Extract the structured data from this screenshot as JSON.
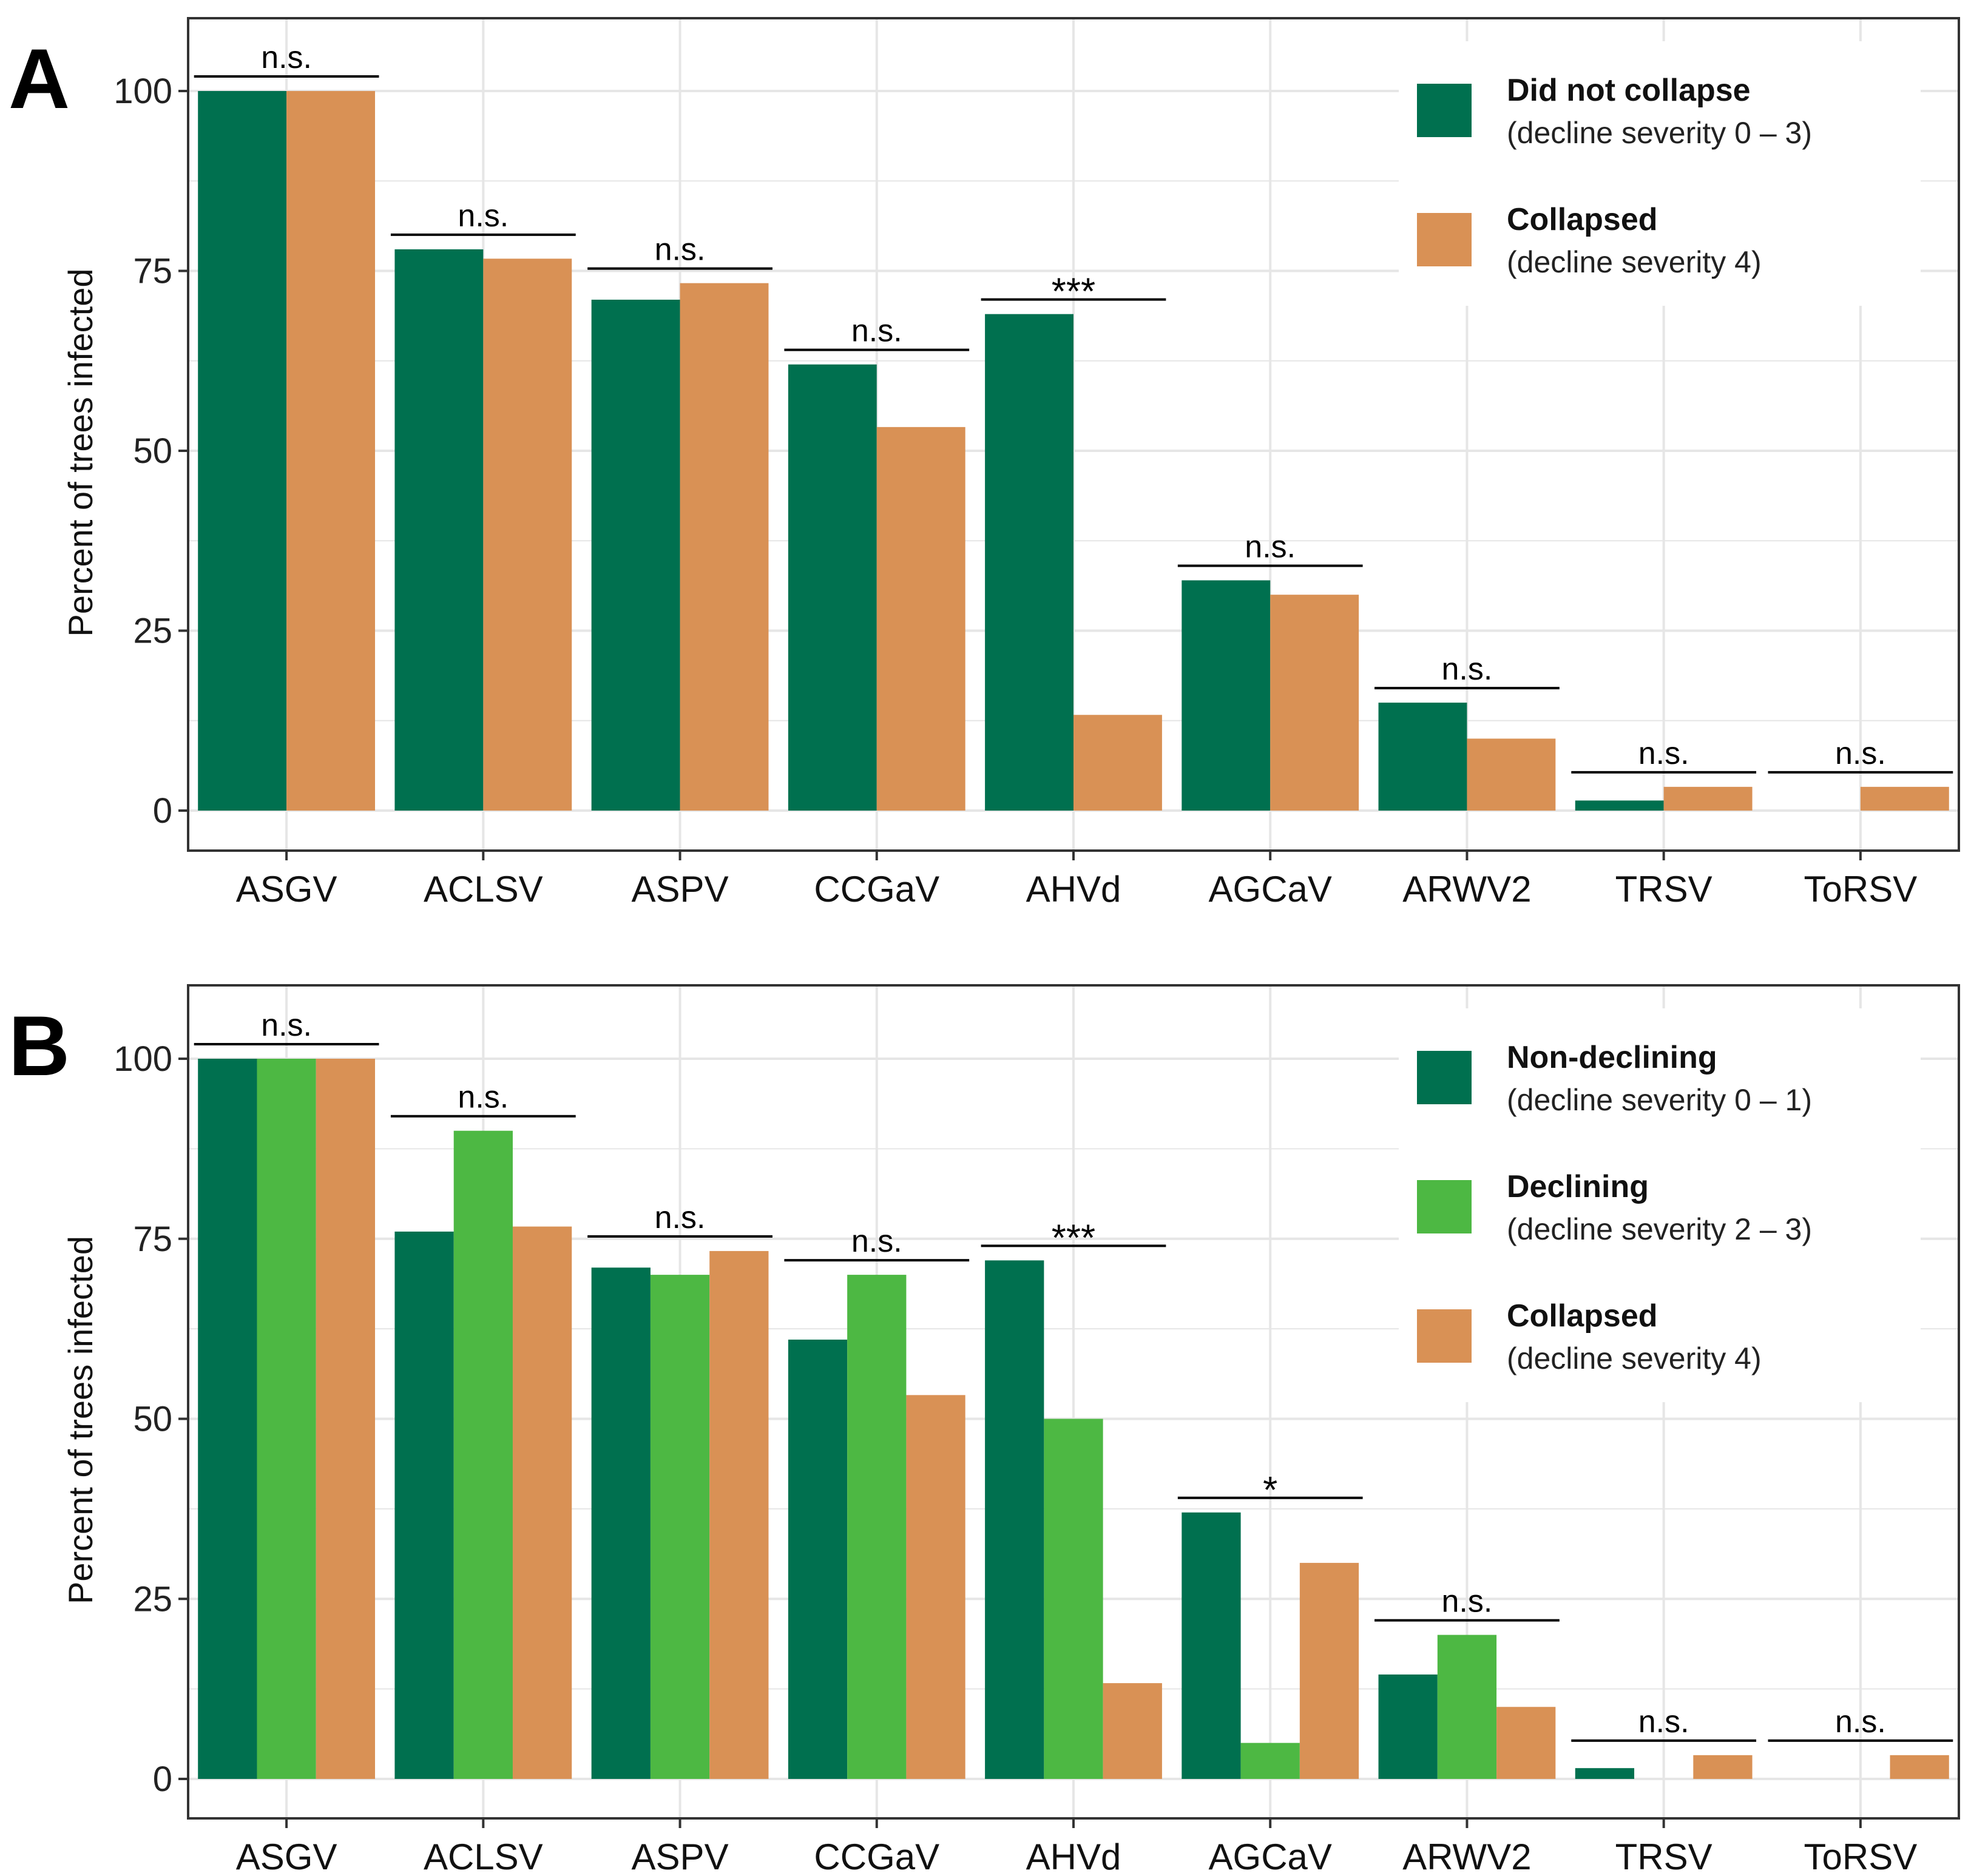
{
  "colors": {
    "did_not_collapse": "#00704F",
    "non_declining": "#00704F",
    "declining": "#4DB843",
    "collapsed": "#D99155",
    "grid": "#E6E6E6",
    "panel_border": "#333333",
    "text": "#000000"
  },
  "chart_data": [
    {
      "panel_label": "A",
      "type": "bar",
      "ylabel": "Percent of trees infected",
      "xlabel": "",
      "ylim": [
        0,
        105
      ],
      "yticks": [
        0,
        25,
        50,
        75,
        100
      ],
      "grid": true,
      "legend_position": "top-right",
      "categories": [
        "ASGV",
        "ACLSV",
        "ASPV",
        "CCGaV",
        "AHVd",
        "AGCaV",
        "ARWV2",
        "TRSV",
        "ToRSV"
      ],
      "significance": [
        "n.s.",
        "n.s.",
        "n.s.",
        "n.s.",
        "***",
        "n.s.",
        "n.s.",
        "n.s.",
        "n.s."
      ],
      "series": [
        {
          "name": "Did not collapse",
          "subtitle": "(decline severity 0 – 3)",
          "color_key": "did_not_collapse",
          "values": [
            100,
            78,
            71,
            62,
            69,
            32,
            15,
            1.4,
            0
          ]
        },
        {
          "name": "Collapsed",
          "subtitle": "(decline severity 4)",
          "color_key": "collapsed",
          "values": [
            100,
            76.7,
            73.3,
            53.3,
            13.3,
            30,
            10,
            3.3,
            3.3
          ]
        }
      ]
    },
    {
      "panel_label": "B",
      "type": "bar",
      "ylabel": "Percent of trees infected",
      "xlabel": "",
      "ylim": [
        0,
        105
      ],
      "yticks": [
        0,
        25,
        50,
        75,
        100
      ],
      "grid": true,
      "legend_position": "top-right",
      "categories": [
        "ASGV",
        "ACLSV",
        "ASPV",
        "CCGaV",
        "AHVd",
        "AGCaV",
        "ARWV2",
        "TRSV",
        "ToRSV"
      ],
      "significance": [
        "n.s.",
        "n.s.",
        "n.s.",
        "n.s.",
        "***",
        "*",
        "n.s.",
        "n.s.",
        "n.s."
      ],
      "series": [
        {
          "name": "Non-declining",
          "subtitle": "(decline severity 0 – 1)",
          "color_key": "non_declining",
          "values": [
            100,
            76,
            71,
            61,
            72,
            37,
            14.5,
            1.5,
            0
          ]
        },
        {
          "name": "Declining",
          "subtitle": "(decline severity 2 – 3)",
          "color_key": "declining",
          "values": [
            100,
            90,
            70,
            70,
            50,
            5,
            20,
            0,
            0
          ]
        },
        {
          "name": "Collapsed",
          "subtitle": "(decline severity 4)",
          "color_key": "collapsed",
          "values": [
            100,
            76.7,
            73.3,
            53.3,
            13.3,
            30,
            10,
            3.3,
            3.3
          ]
        }
      ]
    }
  ]
}
